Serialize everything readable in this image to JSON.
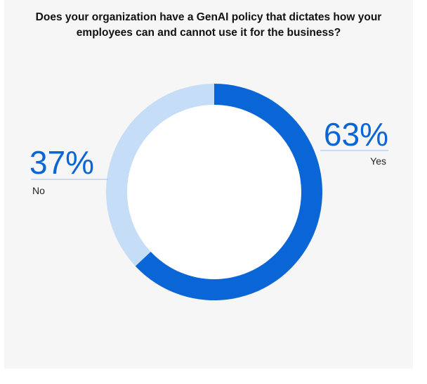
{
  "title_lines": [
    "Does your organization have a GenAI policy that dictates how your",
    "employees can and cannot use it for the business?"
  ],
  "colors": {
    "yes": "#0a66d6",
    "no": "#c6ddf7",
    "leader_line": "#9cc2ee",
    "background": "#f6f6f6"
  },
  "chart_data": {
    "type": "pie",
    "title": "Does your organization have a GenAI policy that dictates how your employees can and cannot use it for the business?",
    "categories": [
      "Yes",
      "No"
    ],
    "values": [
      63,
      37
    ],
    "data_labels": [
      "63%",
      "37%"
    ],
    "unit": "%"
  }
}
